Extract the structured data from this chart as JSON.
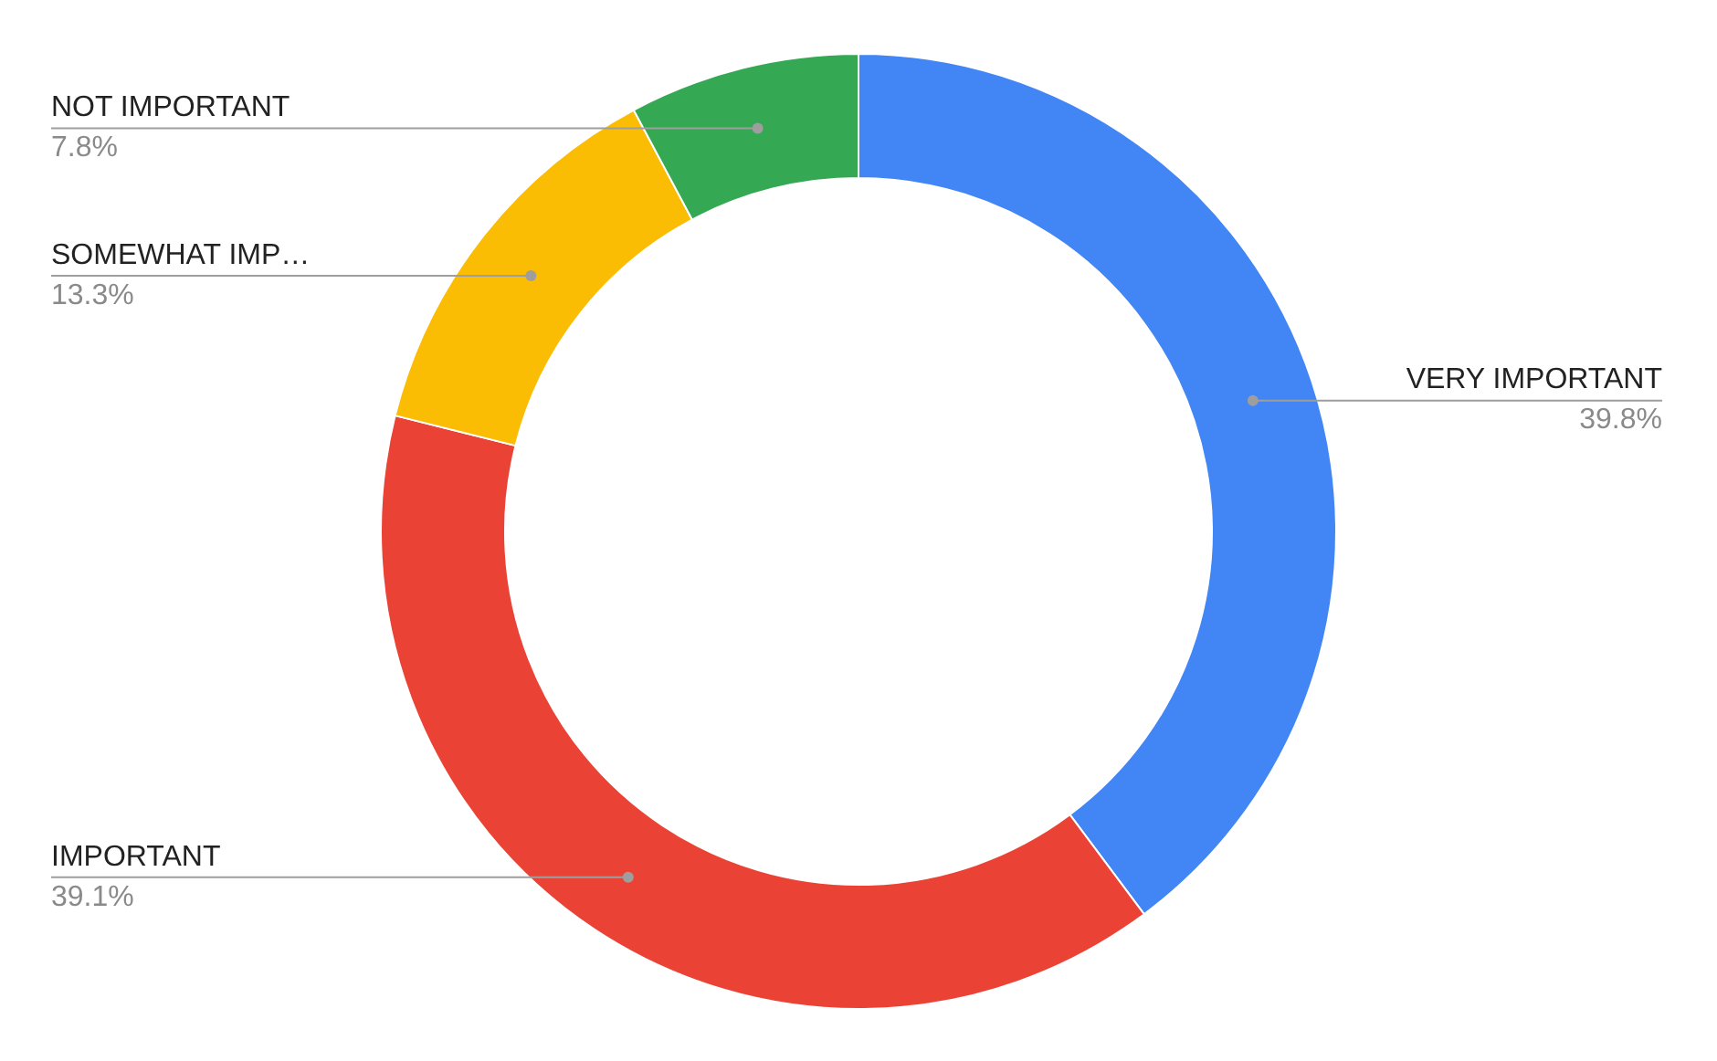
{
  "chart_data": {
    "type": "donut",
    "categories": [
      "VERY IMPORTANT",
      "IMPORTANT",
      "SOMEWHAT IMP…",
      "NOT IMPORTANT"
    ],
    "values": [
      39.8,
      39.1,
      13.3,
      7.8
    ],
    "colors": [
      "#4285f4",
      "#ea4335",
      "#fbbc04",
      "#34a853"
    ],
    "value_labels": [
      "39.8%",
      "39.1%",
      "13.3%",
      "7.8%"
    ],
    "legend": false
  }
}
